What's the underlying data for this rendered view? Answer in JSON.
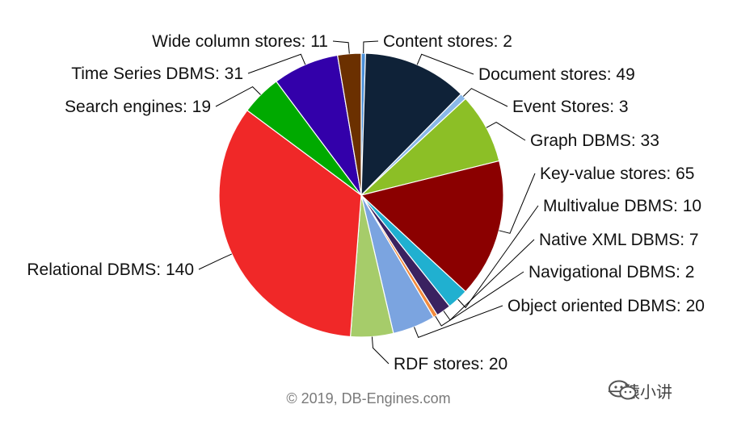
{
  "chart_data": {
    "type": "pie",
    "title": "",
    "legend": "none",
    "slices": [
      {
        "label": "Content stores: 2",
        "value": 2,
        "color": "#4a90d9"
      },
      {
        "label": "Document stores: 49",
        "value": 49,
        "color": "#0f2238"
      },
      {
        "label": "Event Stores: 3",
        "value": 3,
        "color": "#8ab8e8"
      },
      {
        "label": "Graph DBMS: 33",
        "value": 33,
        "color": "#8cbf26"
      },
      {
        "label": "Key-value stores: 65",
        "value": 65,
        "color": "#8b0000"
      },
      {
        "label": "Multivalue DBMS: 10",
        "value": 10,
        "color": "#20b0d0"
      },
      {
        "label": "Native XML DBMS: 7",
        "value": 7,
        "color": "#3a2260"
      },
      {
        "label": "Navigational DBMS: 2",
        "value": 2,
        "color": "#f28a3c"
      },
      {
        "label": "Object oriented DBMS: 20",
        "value": 20,
        "color": "#7ba4e0"
      },
      {
        "label": "RDF stores: 20",
        "value": 20,
        "color": "#a6cc6a"
      },
      {
        "label": "Relational DBMS: 140",
        "value": 140,
        "color": "#f02828"
      },
      {
        "label": "Search engines: 19",
        "value": 19,
        "color": "#00aa00"
      },
      {
        "label": "Time Series DBMS: 31",
        "value": 31,
        "color": "#3300aa"
      },
      {
        "label": "Wide column stores: 11",
        "value": 11,
        "color": "#6b3000"
      }
    ]
  },
  "credits": "© 2019, DB-Engines.com",
  "watermark": {
    "text": "一猿小讲",
    "icon": "wechat-icon"
  }
}
